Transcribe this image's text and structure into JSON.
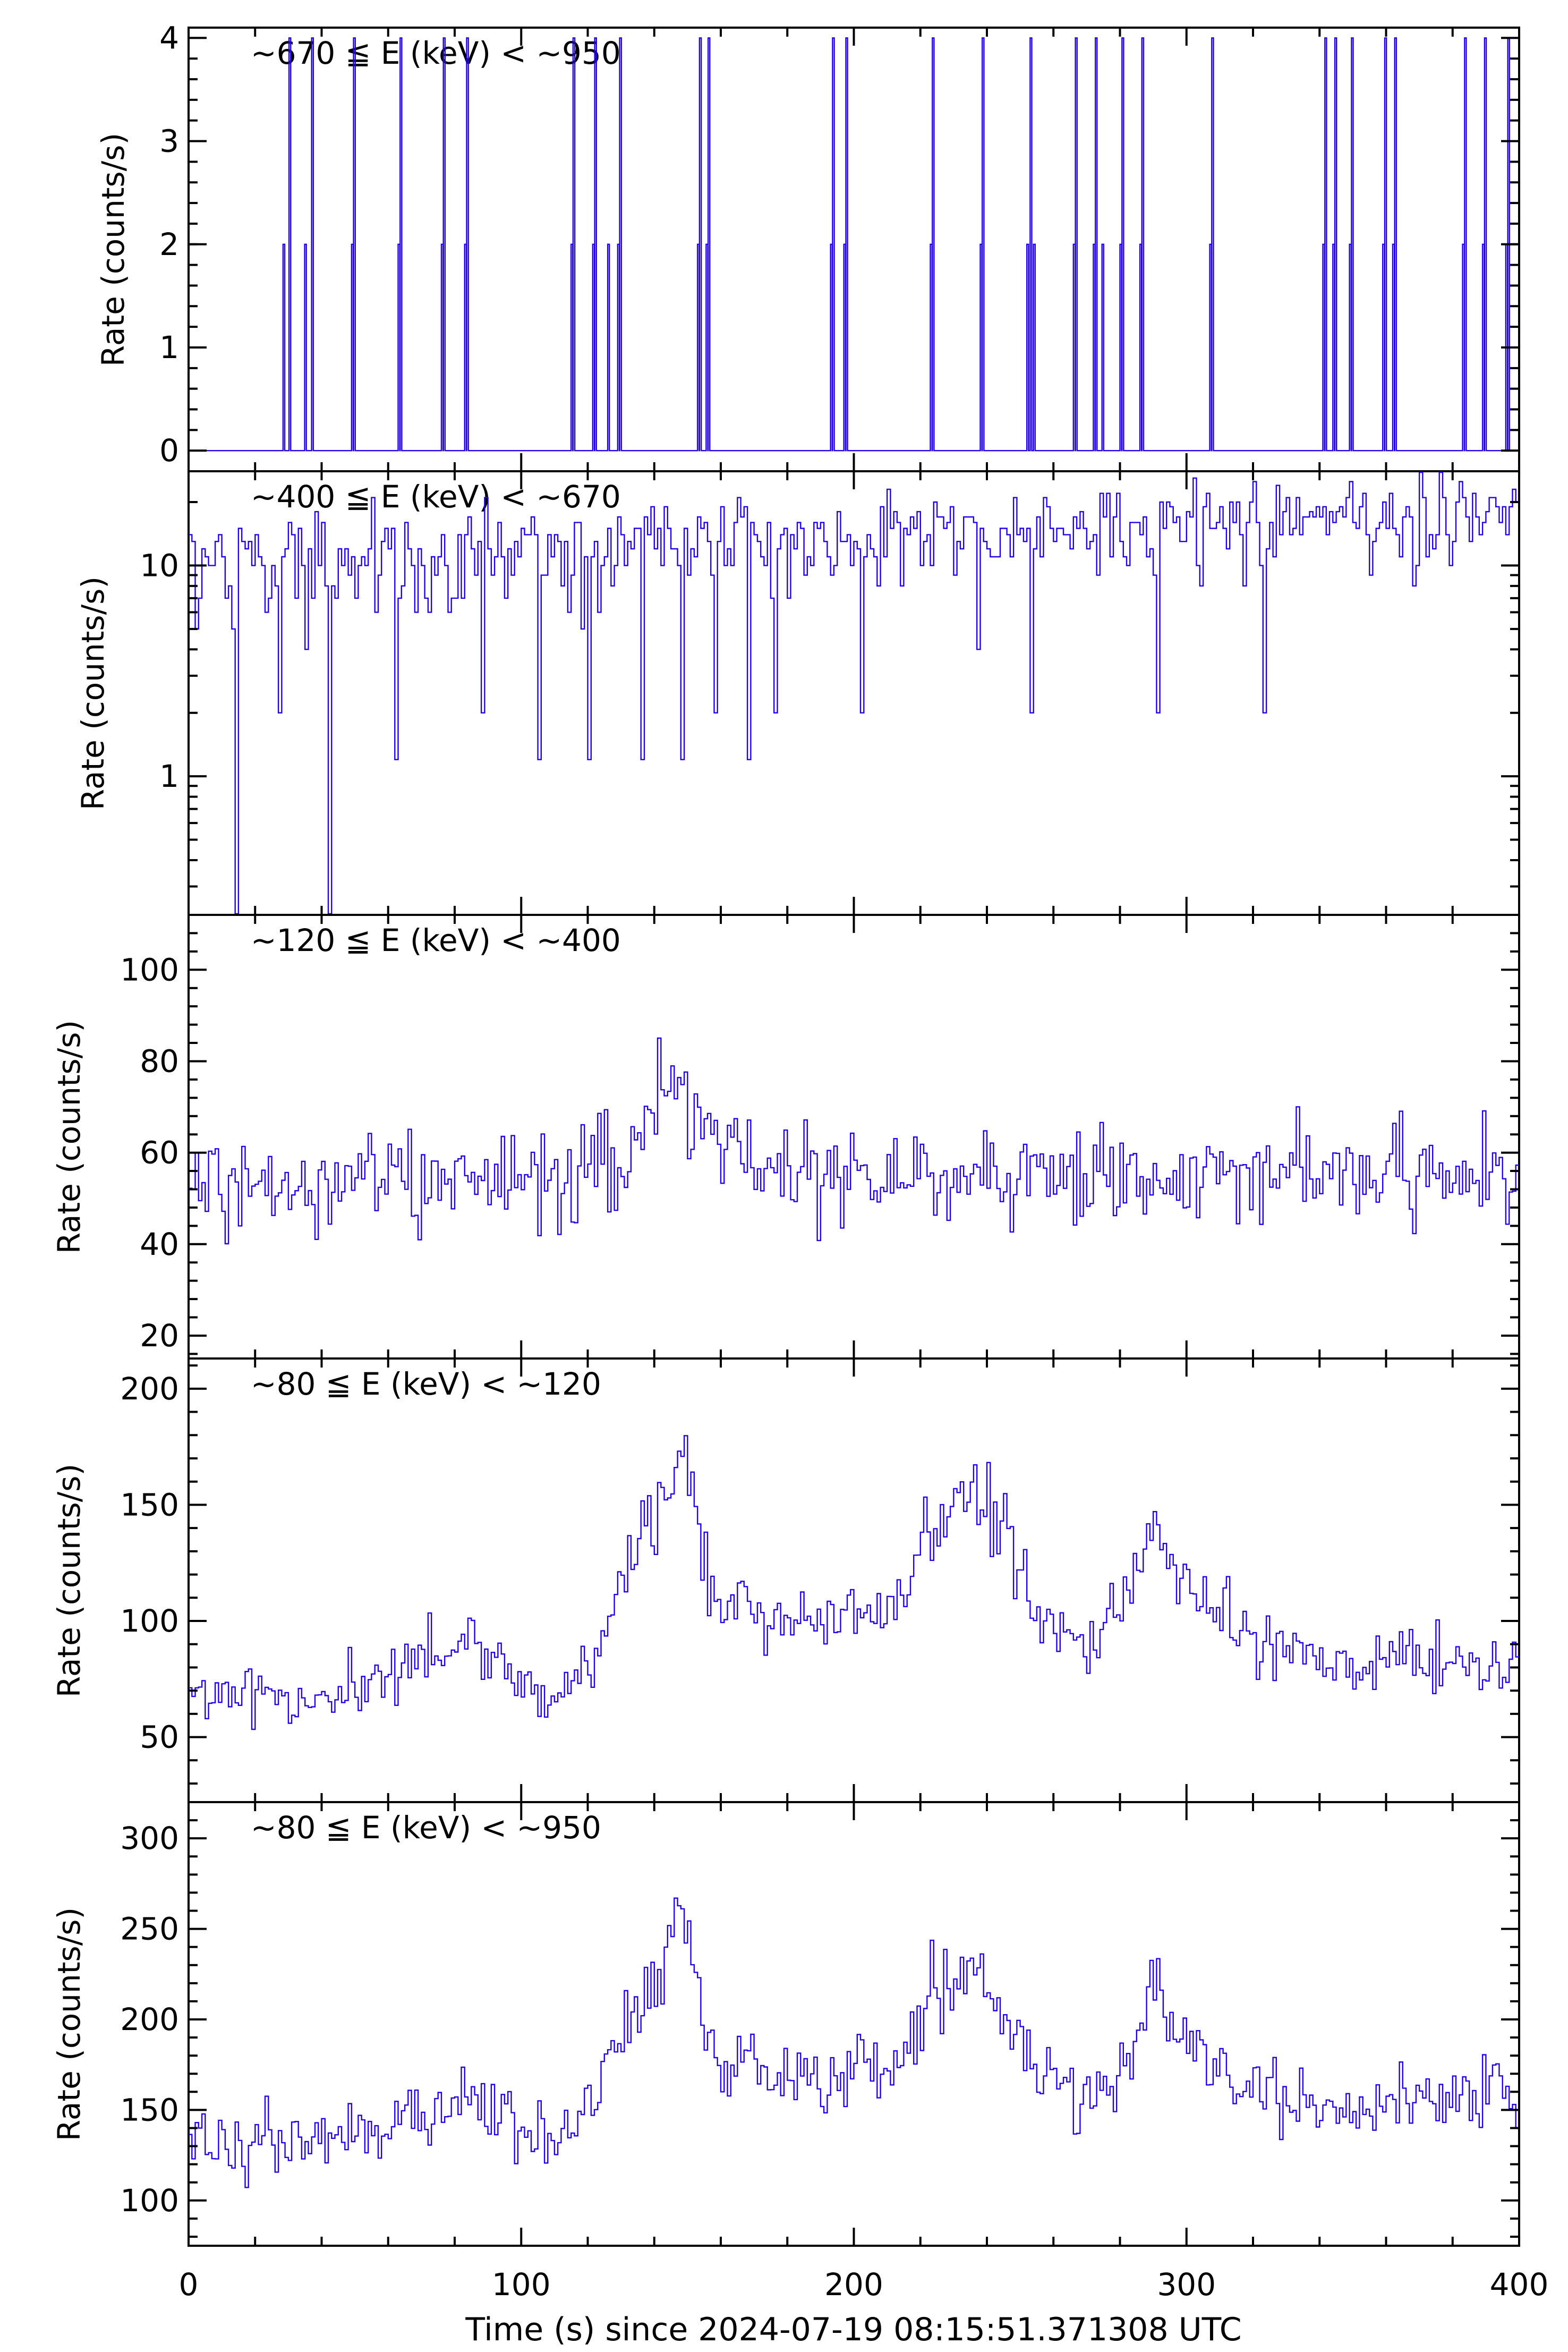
{
  "chart_data": {
    "type": "line",
    "xlabel": "Time (s) since 2024-07-19 08:15:51.371308 UTC",
    "xlim": [
      0,
      400
    ],
    "xticks": [
      0,
      100,
      200,
      300,
      400
    ],
    "series_color": "#2200ee",
    "bin_width_s": 0.5,
    "panels": [
      {
        "title": "~670 ≦ E (keV) < ~950",
        "ylabel": "Rate (counts/s)",
        "yscale": "linear",
        "ylim": [
          -0.2,
          4.1
        ],
        "yticks": [
          0,
          1,
          2,
          3,
          4
        ],
        "ytick_labels": [
          "0",
          "1",
          "2",
          "3",
          "4"
        ],
        "baseline": 0,
        "events": [
          {
            "t": 28.4,
            "v": 2
          },
          {
            "t": 30.2,
            "v": 4
          },
          {
            "t": 34.9,
            "v": 2
          },
          {
            "t": 37.0,
            "v": 4
          },
          {
            "t": 49.0,
            "v": 2
          },
          {
            "t": 49.6,
            "v": 4
          },
          {
            "t": 63.0,
            "v": 2
          },
          {
            "t": 63.6,
            "v": 4
          },
          {
            "t": 76.0,
            "v": 2
          },
          {
            "t": 76.6,
            "v": 4
          },
          {
            "t": 83.0,
            "v": 2
          },
          {
            "t": 83.6,
            "v": 4
          },
          {
            "t": 115.0,
            "v": 2
          },
          {
            "t": 115.6,
            "v": 4
          },
          {
            "t": 121.5,
            "v": 2
          },
          {
            "t": 122.1,
            "v": 4
          },
          {
            "t": 126.0,
            "v": 2
          },
          {
            "t": 129.0,
            "v": 2
          },
          {
            "t": 129.6,
            "v": 4
          },
          {
            "t": 153.0,
            "v": 2
          },
          {
            "t": 153.6,
            "v": 4
          },
          {
            "t": 155.6,
            "v": 2
          },
          {
            "t": 156.2,
            "v": 4
          },
          {
            "t": 193.0,
            "v": 2
          },
          {
            "t": 193.6,
            "v": 4
          },
          {
            "t": 197.0,
            "v": 2
          },
          {
            "t": 197.6,
            "v": 4
          },
          {
            "t": 223.0,
            "v": 2
          },
          {
            "t": 223.6,
            "v": 4
          },
          {
            "t": 238.0,
            "v": 2
          },
          {
            "t": 238.6,
            "v": 4
          },
          {
            "t": 252.0,
            "v": 2
          },
          {
            "t": 253.0,
            "v": 4
          },
          {
            "t": 254.0,
            "v": 2
          },
          {
            "t": 266.0,
            "v": 2
          },
          {
            "t": 266.6,
            "v": 4
          },
          {
            "t": 272.0,
            "v": 2
          },
          {
            "t": 272.6,
            "v": 4
          },
          {
            "t": 274.6,
            "v": 2
          },
          {
            "t": 280.0,
            "v": 2
          },
          {
            "t": 280.6,
            "v": 4
          },
          {
            "t": 286.0,
            "v": 2
          },
          {
            "t": 286.6,
            "v": 4
          },
          {
            "t": 307.0,
            "v": 2
          },
          {
            "t": 307.6,
            "v": 4
          },
          {
            "t": 341.0,
            "v": 2
          },
          {
            "t": 341.6,
            "v": 4
          },
          {
            "t": 344.0,
            "v": 2
          },
          {
            "t": 344.6,
            "v": 4
          },
          {
            "t": 349.0,
            "v": 2
          },
          {
            "t": 349.6,
            "v": 4
          },
          {
            "t": 359.0,
            "v": 2
          },
          {
            "t": 359.6,
            "v": 4
          },
          {
            "t": 362.0,
            "v": 2
          },
          {
            "t": 362.6,
            "v": 4
          },
          {
            "t": 383.0,
            "v": 2
          },
          {
            "t": 383.6,
            "v": 4
          },
          {
            "t": 389.0,
            "v": 2
          },
          {
            "t": 389.6,
            "v": 4
          },
          {
            "t": 396.0,
            "v": 2
          },
          {
            "t": 396.6,
            "v": 4
          }
        ]
      },
      {
        "title": "~400 ≦ E (keV) < ~670",
        "ylabel": "Rate (counts/s)",
        "yscale": "log",
        "ylim": [
          0.22,
          28
        ],
        "yticks": [
          1,
          10
        ],
        "ytick_labels": [
          "1",
          "10"
        ],
        "trend": [
          {
            "t": 0,
            "v": 11
          },
          {
            "t": 100,
            "v": 12
          },
          {
            "t": 200,
            "v": 13
          },
          {
            "t": 300,
            "v": 15
          },
          {
            "t": 380,
            "v": 17
          },
          {
            "t": 400,
            "v": 21
          }
        ],
        "dips": [
          {
            "t": 14.0,
            "v": 0.2
          },
          {
            "t": 42.0,
            "v": 0.2
          },
          {
            "t": 27.0,
            "v": 2
          },
          {
            "t": 62.0,
            "v": 1.2
          },
          {
            "t": 88.0,
            "v": 2
          },
          {
            "t": 105.0,
            "v": 1.2
          },
          {
            "t": 120.0,
            "v": 1.2
          },
          {
            "t": 136.0,
            "v": 1.2
          },
          {
            "t": 148.0,
            "v": 1.2
          },
          {
            "t": 158.0,
            "v": 2
          },
          {
            "t": 168.0,
            "v": 1.2
          },
          {
            "t": 176.0,
            "v": 2
          },
          {
            "t": 202.0,
            "v": 2
          },
          {
            "t": 253.0,
            "v": 2
          },
          {
            "t": 291.0,
            "v": 2
          },
          {
            "t": 323.0,
            "v": 2
          }
        ]
      },
      {
        "title": "~120 ≦ E (keV) < ~400",
        "ylabel": "Rate (counts/s)",
        "yscale": "linear",
        "ylim": [
          15,
          112
        ],
        "yticks": [
          20,
          40,
          60,
          80,
          100
        ],
        "ytick_labels": [
          "20",
          "40",
          "60",
          "80",
          "100"
        ],
        "trend": [
          {
            "t": 0,
            "v": 54
          },
          {
            "t": 50,
            "v": 53
          },
          {
            "t": 110,
            "v": 55
          },
          {
            "t": 125,
            "v": 60
          },
          {
            "t": 135,
            "v": 66
          },
          {
            "t": 145,
            "v": 74
          },
          {
            "t": 152,
            "v": 68
          },
          {
            "t": 165,
            "v": 58
          },
          {
            "t": 200,
            "v": 57
          },
          {
            "t": 300,
            "v": 55
          },
          {
            "t": 400,
            "v": 57
          }
        ]
      },
      {
        "title": "~80 ≦ E (keV) < ~120",
        "ylabel": "Rate (counts/s)",
        "yscale": "linear",
        "ylim": [
          22,
          213
        ],
        "yticks": [
          50,
          100,
          150,
          200
        ],
        "ytick_labels": [
          "50",
          "100",
          "150",
          "200"
        ],
        "trend": [
          {
            "t": 0,
            "v": 70
          },
          {
            "t": 40,
            "v": 65
          },
          {
            "t": 63,
            "v": 80
          },
          {
            "t": 75,
            "v": 88
          },
          {
            "t": 85,
            "v": 92
          },
          {
            "t": 100,
            "v": 72
          },
          {
            "t": 110,
            "v": 68
          },
          {
            "t": 120,
            "v": 78
          },
          {
            "t": 130,
            "v": 120
          },
          {
            "t": 140,
            "v": 145
          },
          {
            "t": 147,
            "v": 175
          },
          {
            "t": 152,
            "v": 150
          },
          {
            "t": 158,
            "v": 110
          },
          {
            "t": 185,
            "v": 100
          },
          {
            "t": 210,
            "v": 105
          },
          {
            "t": 222,
            "v": 135
          },
          {
            "t": 235,
            "v": 160
          },
          {
            "t": 245,
            "v": 140
          },
          {
            "t": 255,
            "v": 100
          },
          {
            "t": 270,
            "v": 88
          },
          {
            "t": 280,
            "v": 105
          },
          {
            "t": 288,
            "v": 150
          },
          {
            "t": 296,
            "v": 125
          },
          {
            "t": 305,
            "v": 110
          },
          {
            "t": 320,
            "v": 90
          },
          {
            "t": 350,
            "v": 85
          },
          {
            "t": 400,
            "v": 78
          }
        ]
      },
      {
        "title": "~80 ≦ E (keV) < ~950",
        "ylabel": "Rate (counts/s)",
        "yscale": "linear",
        "ylim": [
          75,
          320
        ],
        "yticks": [
          100,
          150,
          200,
          250,
          300
        ],
        "ytick_labels": [
          "100",
          "150",
          "200",
          "250",
          "300"
        ],
        "trend": [
          {
            "t": 0,
            "v": 135
          },
          {
            "t": 40,
            "v": 130
          },
          {
            "t": 63,
            "v": 145
          },
          {
            "t": 75,
            "v": 155
          },
          {
            "t": 85,
            "v": 160
          },
          {
            "t": 100,
            "v": 135
          },
          {
            "t": 110,
            "v": 135
          },
          {
            "t": 120,
            "v": 150
          },
          {
            "t": 130,
            "v": 195
          },
          {
            "t": 140,
            "v": 220
          },
          {
            "t": 147,
            "v": 265
          },
          {
            "t": 152,
            "v": 225
          },
          {
            "t": 158,
            "v": 180
          },
          {
            "t": 185,
            "v": 165
          },
          {
            "t": 210,
            "v": 170
          },
          {
            "t": 222,
            "v": 205
          },
          {
            "t": 235,
            "v": 230
          },
          {
            "t": 245,
            "v": 210
          },
          {
            "t": 255,
            "v": 170
          },
          {
            "t": 270,
            "v": 150
          },
          {
            "t": 280,
            "v": 170
          },
          {
            "t": 288,
            "v": 215
          },
          {
            "t": 296,
            "v": 195
          },
          {
            "t": 305,
            "v": 180
          },
          {
            "t": 320,
            "v": 155
          },
          {
            "t": 350,
            "v": 150
          },
          {
            "t": 400,
            "v": 160
          }
        ]
      }
    ]
  }
}
